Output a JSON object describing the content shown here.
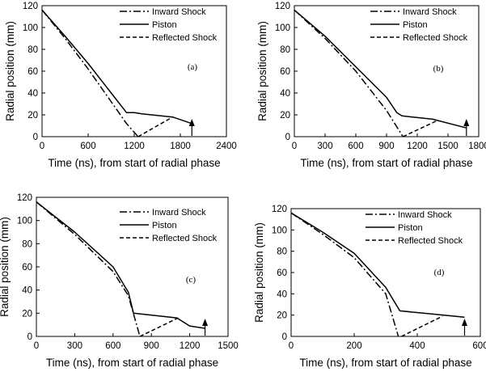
{
  "chart_data": [
    {
      "type": "line",
      "panel_label": "(a)",
      "xlabel": "Time (ns), from start of radial phase",
      "ylabel": "Radial position (mm)",
      "xlim": [
        0,
        2400
      ],
      "ylim": [
        0,
        120
      ],
      "xticks": [
        0,
        600,
        1200,
        1800,
        2400
      ],
      "yticks": [
        0,
        20,
        40,
        60,
        80,
        100,
        120
      ],
      "legend": [
        "Inward Shock",
        "Piston",
        "Reflected Shock"
      ],
      "series": [
        {
          "name": "Inward Shock",
          "style": "dash-dot",
          "x": [
            0,
            300,
            600,
            900,
            1100,
            1250
          ],
          "y": [
            116,
            90,
            62,
            32,
            12,
            0
          ]
        },
        {
          "name": "Piston",
          "style": "solid",
          "x": [
            0,
            300,
            600,
            900,
            1100,
            1200,
            1300,
            1700,
            1950
          ],
          "y": [
            116,
            92,
            67,
            40,
            22,
            22,
            21,
            18,
            12
          ]
        },
        {
          "name": "Reflected Shock",
          "style": "dashed",
          "x": [
            1250,
            1700
          ],
          "y": [
            0,
            18
          ]
        }
      ],
      "arrow_x": 1950
    },
    {
      "type": "line",
      "panel_label": "(b)",
      "xlabel": "Time (ns), from start of radial phase",
      "ylabel": "Radial position (mm)",
      "xlim": [
        0,
        1800
      ],
      "ylim": [
        0,
        120
      ],
      "xticks": [
        0,
        300,
        600,
        900,
        1200,
        1500,
        1800
      ],
      "yticks": [
        0,
        20,
        40,
        60,
        80,
        100,
        120
      ],
      "legend": [
        "Inward Shock",
        "Piston",
        "Reflected Shock"
      ],
      "series": [
        {
          "name": "Inward Shock",
          "style": "dash-dot",
          "x": [
            0,
            300,
            600,
            900,
            1060
          ],
          "y": [
            116,
            90,
            60,
            24,
            0
          ]
        },
        {
          "name": "Piston",
          "style": "solid",
          "x": [
            0,
            300,
            600,
            900,
            1000,
            1050,
            1350,
            1680
          ],
          "y": [
            116,
            92,
            64,
            36,
            22,
            19,
            16,
            8
          ]
        },
        {
          "name": "Reflected Shock",
          "style": "dashed",
          "x": [
            1060,
            1400
          ],
          "y": [
            0,
            15
          ]
        }
      ],
      "arrow_x": 1680
    },
    {
      "type": "line",
      "panel_label": "(c)",
      "xlabel": "Time (ns), from start of radial phase",
      "ylabel": "Radial position (mm)",
      "xlim": [
        0,
        1500
      ],
      "ylim": [
        0,
        120
      ],
      "xticks": [
        0,
        300,
        600,
        900,
        1200,
        1500
      ],
      "yticks": [
        0,
        20,
        40,
        60,
        80,
        100,
        120
      ],
      "legend": [
        "Inward Shock",
        "Piston",
        "Reflected Shock"
      ],
      "series": [
        {
          "name": "Inward Shock",
          "style": "dash-dot",
          "x": [
            0,
            300,
            600,
            720,
            810
          ],
          "y": [
            116,
            88,
            56,
            35,
            0
          ]
        },
        {
          "name": "Piston",
          "style": "solid",
          "x": [
            0,
            300,
            600,
            720,
            760,
            1100,
            1200,
            1320
          ],
          "y": [
            116,
            90,
            60,
            38,
            20,
            16,
            9,
            7
          ]
        },
        {
          "name": "Reflected Shock",
          "style": "dashed",
          "x": [
            810,
            1110
          ],
          "y": [
            0,
            16
          ]
        }
      ],
      "arrow_x": 1320
    },
    {
      "type": "line",
      "panel_label": "(d)",
      "xlabel": "Time (ns), from start of radial phase",
      "ylabel": "Radial position (mm)",
      "xlim": [
        0,
        600
      ],
      "ylim": [
        0,
        120
      ],
      "xticks": [
        0,
        200,
        400,
        600
      ],
      "yticks": [
        0,
        20,
        40,
        60,
        80,
        100,
        120
      ],
      "legend": [
        "Inward Shock",
        "Piston",
        "Reflected Shock"
      ],
      "series": [
        {
          "name": "Inward Shock",
          "style": "dash-dot",
          "x": [
            0,
            100,
            200,
            300,
            340
          ],
          "y": [
            116,
            96,
            74,
            40,
            0
          ]
        },
        {
          "name": "Piston",
          "style": "solid",
          "x": [
            0,
            100,
            200,
            300,
            345,
            450,
            550
          ],
          "y": [
            116,
            98,
            78,
            46,
            24,
            21,
            18
          ]
        },
        {
          "name": "Reflected Shock",
          "style": "dashed",
          "x": [
            350,
            480
          ],
          "y": [
            0,
            19
          ]
        }
      ],
      "arrow_x": 550
    }
  ]
}
